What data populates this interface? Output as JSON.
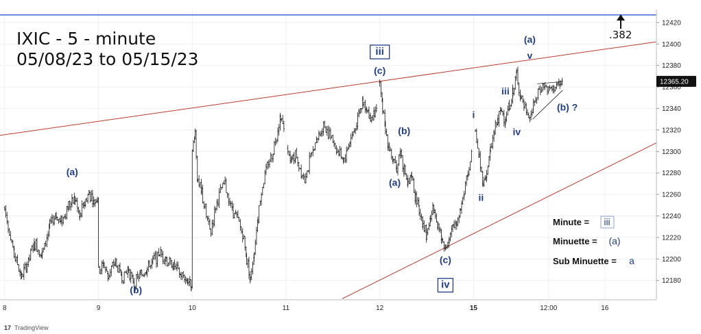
{
  "title_line1": "IXIC - 5 - minute",
  "title_line2": "05/08/23 to 05/15/23",
  "brand": "TradingView",
  "fib_label": ".382",
  "colors": {
    "wave_text": "#1f3d8c",
    "trendline": "#c0392b",
    "top_line": "#2a5bd7",
    "price_box": "#111111",
    "candle": "#111111"
  },
  "legend": [
    {
      "label": "Minute  =",
      "symbol": "iii",
      "boxed": true
    },
    {
      "label": "Minuette =",
      "symbol": "(a)",
      "boxed": false
    },
    {
      "label": "Sub Minuette =",
      "symbol": "a",
      "boxed": false
    }
  ],
  "chart_data": {
    "type": "candlestick",
    "symbol": "IXIC",
    "interval": "5 - minute",
    "ylim": [
      12162,
      12432
    ],
    "y_ticks": [
      12180,
      12200,
      12220,
      12240,
      12260,
      12280,
      12300,
      12320,
      12340,
      12360,
      12380,
      12400,
      12420
    ],
    "x_ticks": [
      {
        "label": "8",
        "x": 0,
        "bold": false
      },
      {
        "label": "9",
        "x": 1,
        "bold": false
      },
      {
        "label": "10",
        "x": 2,
        "bold": false
      },
      {
        "label": "11",
        "x": 3,
        "bold": false
      },
      {
        "label": "12",
        "x": 4,
        "bold": false
      },
      {
        "label": "15",
        "x": 5,
        "bold": true
      },
      {
        "label": "12:00",
        "x": 5.8,
        "bold": false
      },
      {
        "label": "16",
        "x": 6.4,
        "bold": false
      }
    ],
    "xlim": [
      -0.05,
      6.95
    ],
    "last_price": "12365.20",
    "top_level": 12427,
    "upper_trendline": {
      "x": [
        -0.05,
        6.95
      ],
      "y": [
        12315,
        12402
      ]
    },
    "lower_trendline": {
      "x": [
        3.6,
        6.95
      ],
      "y": [
        12163,
        12308
      ]
    },
    "triangle_upper": {
      "x": [
        5.68,
        5.95
      ],
      "y": [
        12363,
        12365
      ]
    },
    "triangle_lower": {
      "x": [
        5.63,
        5.95
      ],
      "y": [
        12330,
        12357
      ]
    },
    "price_path": [
      [
        0.0,
        12248
      ],
      [
        0.05,
        12225
      ],
      [
        0.1,
        12205
      ],
      [
        0.18,
        12183
      ],
      [
        0.24,
        12195
      ],
      [
        0.32,
        12215
      ],
      [
        0.4,
        12205
      ],
      [
        0.48,
        12230
      ],
      [
        0.55,
        12240
      ],
      [
        0.6,
        12235
      ],
      [
        0.68,
        12250
      ],
      [
        0.75,
        12256
      ],
      [
        0.8,
        12240
      ],
      [
        0.85,
        12252
      ],
      [
        0.9,
        12262
      ],
      [
        0.95,
        12252
      ],
      [
        0.99,
        12258
      ],
      [
        1.0,
        12190
      ],
      [
        1.05,
        12195
      ],
      [
        1.1,
        12186
      ],
      [
        1.18,
        12196
      ],
      [
        1.25,
        12183
      ],
      [
        1.32,
        12190
      ],
      [
        1.38,
        12177
      ],
      [
        1.45,
        12185
      ],
      [
        1.52,
        12192
      ],
      [
        1.58,
        12198
      ],
      [
        1.65,
        12205
      ],
      [
        1.72,
        12200
      ],
      [
        1.8,
        12194
      ],
      [
        1.88,
        12185
      ],
      [
        1.95,
        12180
      ],
      [
        1.99,
        12178
      ],
      [
        2.0,
        12300
      ],
      [
        2.03,
        12318
      ],
      [
        2.06,
        12270
      ],
      [
        2.1,
        12262
      ],
      [
        2.15,
        12240
      ],
      [
        2.2,
        12225
      ],
      [
        2.25,
        12250
      ],
      [
        2.3,
        12262
      ],
      [
        2.35,
        12270
      ],
      [
        2.4,
        12252
      ],
      [
        2.45,
        12242
      ],
      [
        2.5,
        12232
      ],
      [
        2.55,
        12220
      ],
      [
        2.58,
        12200
      ],
      [
        2.62,
        12182
      ],
      [
        2.66,
        12205
      ],
      [
        2.7,
        12240
      ],
      [
        2.75,
        12270
      ],
      [
        2.8,
        12285
      ],
      [
        2.85,
        12298
      ],
      [
        2.9,
        12315
      ],
      [
        2.94,
        12333
      ],
      [
        2.98,
        12318
      ],
      [
        3.02,
        12305
      ],
      [
        3.06,
        12290
      ],
      [
        3.1,
        12298
      ],
      [
        3.15,
        12285
      ],
      [
        3.2,
        12275
      ],
      [
        3.25,
        12290
      ],
      [
        3.3,
        12305
      ],
      [
        3.35,
        12315
      ],
      [
        3.4,
        12325
      ],
      [
        3.45,
        12318
      ],
      [
        3.5,
        12310
      ],
      [
        3.55,
        12300
      ],
      [
        3.62,
        12292
      ],
      [
        3.68,
        12310
      ],
      [
        3.74,
        12322
      ],
      [
        3.78,
        12336
      ],
      [
        3.82,
        12346
      ],
      [
        3.86,
        12340
      ],
      [
        3.9,
        12330
      ],
      [
        3.94,
        12336
      ],
      [
        3.97,
        12348
      ],
      [
        4.0,
        12362
      ],
      [
        4.03,
        12340
      ],
      [
        4.06,
        12318
      ],
      [
        4.1,
        12305
      ],
      [
        4.14,
        12290
      ],
      [
        4.18,
        12285
      ],
      [
        4.22,
        12300
      ],
      [
        4.26,
        12283
      ],
      [
        4.3,
        12268
      ],
      [
        4.34,
        12275
      ],
      [
        4.38,
        12258
      ],
      [
        4.42,
        12245
      ],
      [
        4.46,
        12235
      ],
      [
        4.5,
        12222
      ],
      [
        4.54,
        12238
      ],
      [
        4.58,
        12248
      ],
      [
        4.62,
        12232
      ],
      [
        4.66,
        12218
      ],
      [
        4.7,
        12212
      ],
      [
        4.74,
        12218
      ],
      [
        4.78,
        12228
      ],
      [
        4.82,
        12235
      ],
      [
        4.86,
        12248
      ],
      [
        4.9,
        12262
      ],
      [
        4.94,
        12280
      ],
      [
        4.98,
        12300
      ],
      [
        5.02,
        12322
      ],
      [
        5.06,
        12292
      ],
      [
        5.1,
        12270
      ],
      [
        5.14,
        12280
      ],
      [
        5.18,
        12300
      ],
      [
        5.22,
        12318
      ],
      [
        5.26,
        12330
      ],
      [
        5.3,
        12338
      ],
      [
        5.34,
        12330
      ],
      [
        5.38,
        12342
      ],
      [
        5.42,
        12355
      ],
      [
        5.46,
        12372
      ],
      [
        5.5,
        12352
      ],
      [
        5.55,
        12340
      ],
      [
        5.6,
        12332
      ],
      [
        5.65,
        12345
      ],
      [
        5.7,
        12358
      ],
      [
        5.75,
        12362
      ],
      [
        5.8,
        12356
      ],
      [
        5.86,
        12360
      ],
      [
        5.92,
        12362
      ],
      [
        5.95,
        12365.2
      ]
    ],
    "annotations": [
      {
        "text": "(a)",
        "x": 0.72,
        "y": 12278
      },
      {
        "text": "(b)",
        "x": 1.4,
        "y": 12168
      },
      {
        "text": "iii",
        "x": 4.0,
        "y": 12390,
        "boxed": true
      },
      {
        "text": "(c)",
        "x": 4.0,
        "y": 12372
      },
      {
        "text": "(b)",
        "x": 4.26,
        "y": 12316
      },
      {
        "text": "(a)",
        "x": 4.16,
        "y": 12268
      },
      {
        "text": "(c)",
        "x": 4.7,
        "y": 12196
      },
      {
        "text": "iv",
        "x": 4.7,
        "y": 12173,
        "boxed": true
      },
      {
        "text": "i",
        "x": 5.0,
        "y": 12331
      },
      {
        "text": "ii",
        "x": 5.08,
        "y": 12254
      },
      {
        "text": "iii",
        "x": 5.34,
        "y": 12353
      },
      {
        "text": "iv",
        "x": 5.46,
        "y": 12315
      },
      {
        "text": "(a)",
        "x": 5.6,
        "y": 12401
      },
      {
        "text": "v",
        "x": 5.6,
        "y": 12386
      },
      {
        "text": "(b) ?",
        "x": 6.0,
        "y": 12338
      }
    ]
  }
}
